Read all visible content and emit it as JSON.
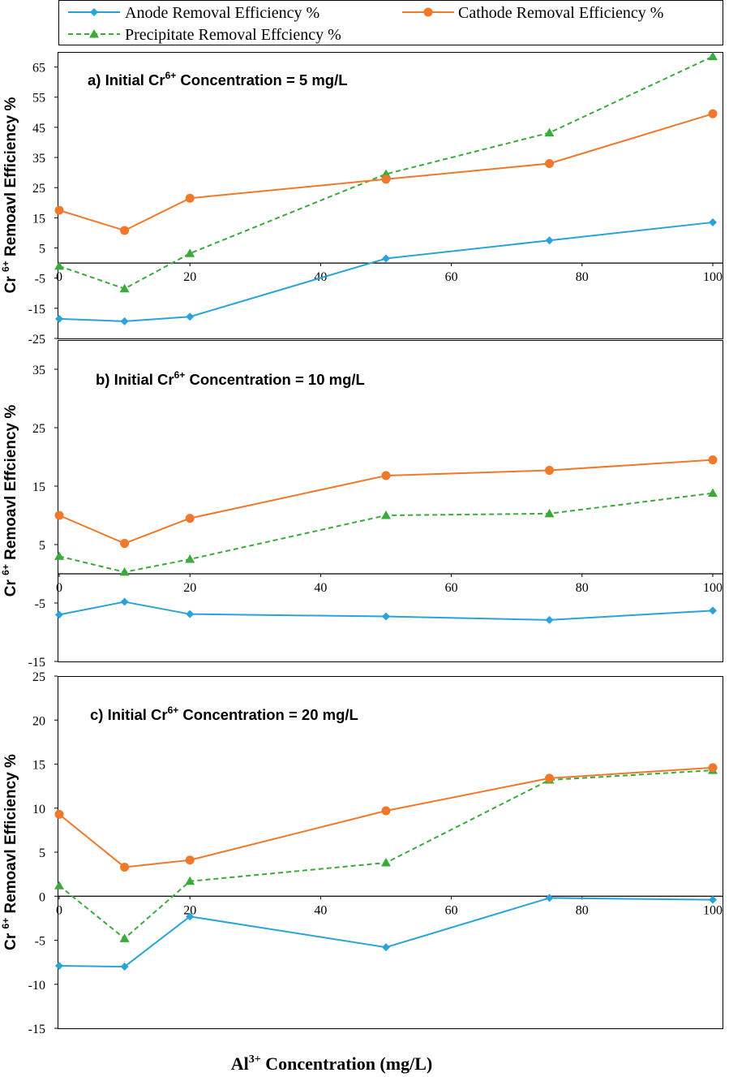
{
  "legend": {
    "entries": [
      {
        "id": "anode",
        "label": "Anode Removal Efficiency %"
      },
      {
        "id": "cathode",
        "label": "Cathode Removal Efficiency %"
      },
      {
        "id": "precip",
        "label": "Precipitate Removal Effciency %"
      }
    ]
  },
  "xlabel": {
    "prefix": "Al",
    "sup": "3+",
    "suffix": " Concentration (mg/L)"
  },
  "colors": {
    "anode": "#2aa3d8",
    "cathode": "#f0782a",
    "precip": "#3aab3a",
    "axis": "#000000"
  },
  "chart_data": [
    {
      "type": "line",
      "title": {
        "pre": "a) Initial  Cr",
        "sup": "6+",
        "post": " Concentration = 5 mg/L"
      },
      "ylabel": {
        "pre": "Cr ",
        "sup": "6+",
        "post": " Remoavl Efficiency %"
      },
      "xlabel": "Al3+ Concentration (mg/L)",
      "x": [
        0,
        10,
        20,
        50,
        75,
        100
      ],
      "xticks": [
        0,
        20,
        40,
        60,
        80,
        100
      ],
      "xlim": [
        0,
        100
      ],
      "ylim": [
        -25,
        70
      ],
      "yticks": [
        -25,
        -15,
        -5,
        5,
        15,
        25,
        35,
        45,
        55,
        65
      ],
      "series": [
        {
          "name": "Anode Removal Efficiency %",
          "key": "anode",
          "values": [
            -18.5,
            -19.3,
            -17.8,
            1.5,
            7.5,
            13.5
          ]
        },
        {
          "name": "Cathode Removal Efficiency %",
          "key": "cathode",
          "values": [
            17.5,
            10.8,
            21.5,
            27.8,
            33.0,
            49.5
          ]
        },
        {
          "name": "Precipitate Removal Effciency %",
          "key": "precip",
          "values": [
            -1.0,
            -8.5,
            3.2,
            29.5,
            43.2,
            68.5
          ]
        }
      ]
    },
    {
      "type": "line",
      "title": {
        "pre": "b)  Initial Cr",
        "sup": "6+",
        "post": " Concentration = 10 mg/L"
      },
      "ylabel": {
        "pre": "Cr ",
        "sup": "6+",
        "post": "  Remoavl Effciency %"
      },
      "xlabel": "Al3+ Concentration (mg/L)",
      "x": [
        0,
        10,
        20,
        50,
        75,
        100
      ],
      "xticks": [
        0,
        20,
        40,
        60,
        80,
        100
      ],
      "xlim": [
        0,
        100
      ],
      "ylim": [
        -15,
        40
      ],
      "yticks": [
        -15,
        -5,
        5,
        15,
        25,
        35
      ],
      "series": [
        {
          "name": "Anode Removal Efficiency %",
          "key": "anode",
          "values": [
            -7.0,
            -4.8,
            -6.9,
            -7.3,
            -7.9,
            -6.3
          ]
        },
        {
          "name": "Cathode Removal Efficiency %",
          "key": "cathode",
          "values": [
            10.0,
            5.2,
            9.5,
            16.8,
            17.7,
            19.5
          ]
        },
        {
          "name": "Precipitate Removal Effciency %",
          "key": "precip",
          "values": [
            3.0,
            0.3,
            2.5,
            10.0,
            10.3,
            13.8
          ]
        }
      ]
    },
    {
      "type": "line",
      "title": {
        "pre": "c)  Initial Cr",
        "sup": "6+",
        "post": " Concentration = 20 mg/L"
      },
      "ylabel": {
        "pre": "Cr ",
        "sup": "6+",
        "post": "  Remoavl Efficiency %"
      },
      "xlabel": "Al3+ Concentration (mg/L)",
      "x": [
        0,
        10,
        20,
        50,
        75,
        100
      ],
      "xticks": [
        0,
        20,
        40,
        60,
        80,
        100
      ],
      "xlim": [
        0,
        100
      ],
      "ylim": [
        -15,
        25
      ],
      "yticks": [
        -15,
        -10,
        -5,
        0,
        5,
        10,
        15,
        20,
        25
      ],
      "series": [
        {
          "name": "Anode Removal Efficiency %",
          "key": "anode",
          "values": [
            -7.9,
            -8.0,
            -2.3,
            -5.8,
            -0.2,
            -0.4
          ]
        },
        {
          "name": "Cathode Removal Efficiency %",
          "key": "cathode",
          "values": [
            9.3,
            3.3,
            4.1,
            9.7,
            13.4,
            14.6
          ]
        },
        {
          "name": "Precipitate Removal Effciency %",
          "key": "precip",
          "values": [
            1.2,
            -4.8,
            1.7,
            3.8,
            13.2,
            14.3
          ]
        }
      ]
    }
  ]
}
